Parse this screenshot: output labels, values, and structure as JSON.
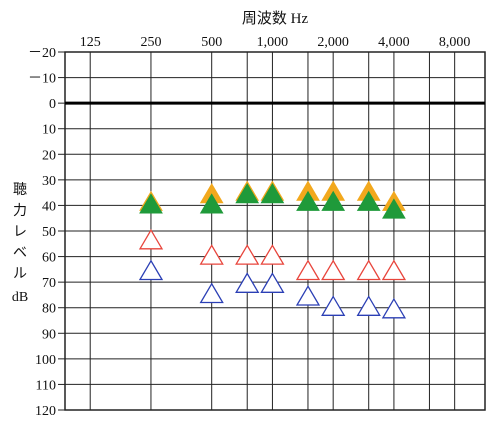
{
  "chart_data": {
    "type": "scatter",
    "title": "周波数 Hz",
    "ylabel_lines": [
      "聴",
      "力",
      "レ",
      "ベ",
      "ル",
      "dB"
    ],
    "x_tick_labels": [
      "125",
      "250",
      "500",
      "1,000",
      "2,000",
      "4,000",
      "8,000"
    ],
    "x_tick_values": [
      125,
      250,
      500,
      1000,
      2000,
      4000,
      8000
    ],
    "xlim": [
      93.75,
      11310
    ],
    "x_scale": "log2",
    "y_tick_labels": [
      "－20",
      "－10",
      "0",
      "10",
      "20",
      "30",
      "40",
      "50",
      "60",
      "70",
      "80",
      "90",
      "100",
      "110",
      "120"
    ],
    "ylim": [
      -20,
      120
    ],
    "y_reversed": true,
    "grid": true,
    "reference_line_y": 0,
    "colors": {
      "red": "#e8453c",
      "blue": "#2b3fb5",
      "orange": "#f2a81d",
      "green": "#1f9a3a",
      "grid": "#222222"
    },
    "series": [
      {
        "marker": "triangle-up-open",
        "color": "#e8453c",
        "points": [
          [
            250,
            54
          ],
          [
            500,
            60
          ],
          [
            750,
            60
          ],
          [
            1000,
            60
          ],
          [
            1500,
            66
          ],
          [
            2000,
            66
          ],
          [
            3000,
            66
          ],
          [
            4000,
            66
          ]
        ]
      },
      {
        "marker": "triangle-up-open",
        "color": "#2b3fb5",
        "points": [
          [
            250,
            66
          ],
          [
            500,
            75
          ],
          [
            750,
            71
          ],
          [
            1000,
            71
          ],
          [
            1500,
            76
          ],
          [
            2000,
            80
          ],
          [
            3000,
            80
          ],
          [
            4000,
            81
          ]
        ]
      },
      {
        "marker": "triangle-up-filled",
        "color": "#f2a81d",
        "points": [
          [
            250,
            39
          ],
          [
            500,
            36
          ],
          [
            750,
            35
          ],
          [
            1000,
            35
          ],
          [
            1500,
            35
          ],
          [
            2000,
            35
          ],
          [
            3000,
            35
          ],
          [
            4000,
            39
          ]
        ]
      },
      {
        "marker": "triangle-up-filled",
        "color": "#1f9a3a",
        "points": [
          [
            250,
            40
          ],
          [
            500,
            40
          ],
          [
            750,
            36
          ],
          [
            1000,
            36
          ],
          [
            1500,
            39
          ],
          [
            2000,
            39
          ],
          [
            3000,
            39
          ],
          [
            4000,
            42
          ]
        ]
      }
    ]
  }
}
